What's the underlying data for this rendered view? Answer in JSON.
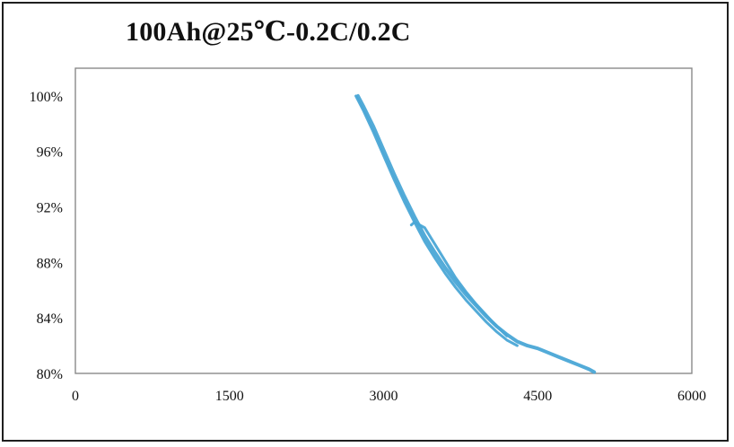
{
  "chart_data": {
    "type": "line",
    "title": "100Ah@25℃-0.2C/0.2C",
    "xlabel": "",
    "ylabel": "",
    "xlim": [
      0,
      6000
    ],
    "ylim": [
      0.8,
      1.02
    ],
    "x_ticks": [
      0,
      1500,
      3000,
      4500,
      6000
    ],
    "x_tick_labels": [
      "0",
      "1500",
      "3000",
      "4500",
      "6000"
    ],
    "y_ticks": [
      0.8,
      0.84,
      0.88,
      0.92,
      0.96,
      1.0
    ],
    "y_tick_labels": [
      "80%",
      "84%",
      "88%",
      "92%",
      "96%",
      "100%"
    ],
    "grid": true,
    "legend": "none",
    "series": [
      {
        "color": "#4aa6d6",
        "x": [
          2750,
          2800,
          2900,
          3000,
          3100,
          3200,
          3300,
          3400,
          3500,
          3600,
          3700,
          3800,
          3900,
          4000,
          4100,
          4200,
          4300,
          4400,
          4500,
          4600,
          4700,
          4800,
          4900,
          5000,
          5050
        ],
        "y": [
          1.0,
          0.993,
          0.978,
          0.961,
          0.944,
          0.928,
          0.913,
          0.899,
          0.887,
          0.876,
          0.866,
          0.857,
          0.849,
          0.841,
          0.834,
          0.828,
          0.823,
          0.82,
          0.818,
          0.815,
          0.812,
          0.809,
          0.806,
          0.803,
          0.801
        ]
      },
      {
        "color": "#4aa6d6",
        "x": [
          2730,
          2800,
          2900,
          3000,
          3100,
          3200,
          3300,
          3400,
          3500,
          3600,
          3700,
          3800,
          3900,
          4000,
          4100,
          4200,
          4300
        ],
        "y": [
          1.0,
          0.99,
          0.974,
          0.957,
          0.94,
          0.924,
          0.909,
          0.895,
          0.883,
          0.872,
          0.862,
          0.853,
          0.845,
          0.837,
          0.83,
          0.824,
          0.82
        ]
      },
      {
        "color": "#4aa6d6",
        "x": [
          3270,
          3300,
          3400,
          3500,
          3600,
          3700,
          3800,
          3900,
          4000,
          4100,
          4200
        ],
        "y": [
          0.907,
          0.909,
          0.905,
          0.893,
          0.881,
          0.869,
          0.859,
          0.85,
          0.842,
          0.834,
          0.827
        ]
      }
    ]
  }
}
